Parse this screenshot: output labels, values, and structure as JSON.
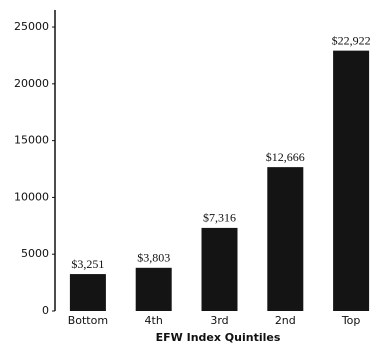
{
  "chart_data": {
    "type": "bar",
    "x_label": "EFW Index Quintiles",
    "categories": [
      "Bottom",
      "4th",
      "3rd",
      "2nd",
      "Top"
    ],
    "values": [
      3251,
      3803,
      7316,
      12666,
      22922
    ],
    "value_labels": [
      "$3,251",
      "$3,803",
      "$7,316",
      "$12,666",
      "$22,922"
    ],
    "color": "#141414",
    "ylim": [
      0,
      26500
    ],
    "yticks": [
      0,
      5000,
      10000,
      15000,
      20000,
      25000
    ],
    "grid": false
  }
}
